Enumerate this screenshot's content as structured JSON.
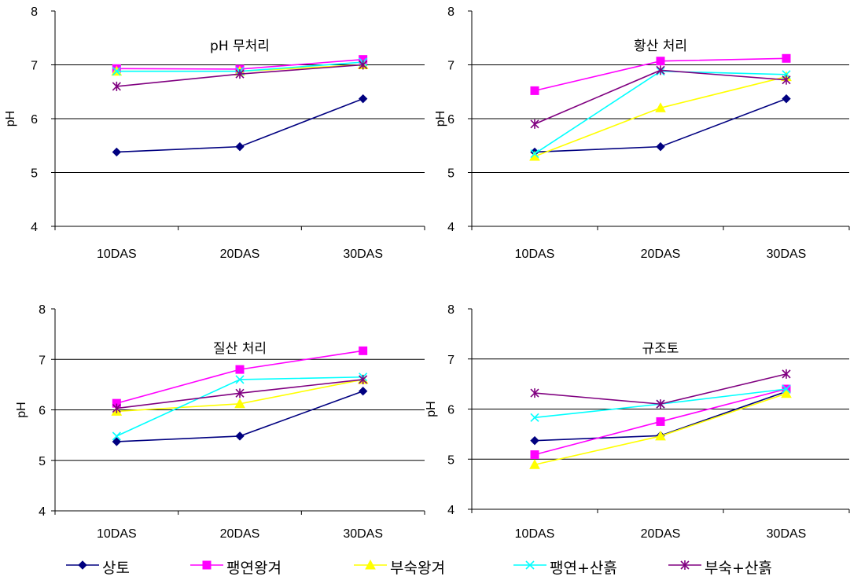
{
  "chart_data": [
    {
      "type": "line",
      "title": "pH 무처리",
      "ylabel": "pH",
      "categories": [
        "10DAS",
        "20DAS",
        "30DAS"
      ],
      "yticks": [
        "4",
        "5",
        "6",
        "7",
        "8"
      ],
      "ylim": [
        4,
        8
      ],
      "grid": true,
      "series": [
        {
          "name": "상토",
          "values": [
            5.38,
            5.48,
            6.37
          ]
        },
        {
          "name": "팽연왕겨",
          "values": [
            6.93,
            6.92,
            7.1
          ]
        },
        {
          "name": "부숙왕겨",
          "values": [
            6.88,
            6.88,
            7.0
          ]
        },
        {
          "name": "팽연+산흙",
          "values": [
            6.88,
            6.88,
            7.05
          ]
        },
        {
          "name": "부숙+산흙",
          "values": [
            6.6,
            6.83,
            7.0
          ]
        }
      ]
    },
    {
      "type": "line",
      "title": "황산 처리",
      "ylabel": "pH",
      "categories": [
        "10DAS",
        "20DAS",
        "30DAS"
      ],
      "yticks": [
        "4",
        "5",
        "6",
        "7",
        "8"
      ],
      "ylim": [
        4,
        8
      ],
      "grid": true,
      "series": [
        {
          "name": "상토",
          "values": [
            5.38,
            5.48,
            6.37
          ]
        },
        {
          "name": "팽연왕겨",
          "values": [
            6.52,
            7.07,
            7.12
          ]
        },
        {
          "name": "부숙왕겨",
          "values": [
            5.3,
            6.2,
            6.78
          ]
        },
        {
          "name": "팽연+산흙",
          "values": [
            5.35,
            6.88,
            6.82
          ]
        },
        {
          "name": "부숙+산흙",
          "values": [
            5.9,
            6.9,
            6.72
          ]
        }
      ]
    },
    {
      "type": "line",
      "title": "질산 처리",
      "ylabel": "pH",
      "categories": [
        "10DAS",
        "20DAS",
        "30DAS"
      ],
      "yticks": [
        "4",
        "5",
        "6",
        "7",
        "8"
      ],
      "ylim": [
        4,
        8
      ],
      "grid": true,
      "series": [
        {
          "name": "상토",
          "values": [
            5.37,
            5.48,
            6.37
          ]
        },
        {
          "name": "팽연왕겨",
          "values": [
            6.13,
            6.8,
            7.17
          ]
        },
        {
          "name": "부숙왕겨",
          "values": [
            5.97,
            6.12,
            6.6
          ]
        },
        {
          "name": "팽연+산흙",
          "values": [
            5.48,
            6.6,
            6.65
          ]
        },
        {
          "name": "부숙+산흙",
          "values": [
            6.03,
            6.33,
            6.6
          ]
        }
      ]
    },
    {
      "type": "line",
      "title": "규조토",
      "ylabel": "pH",
      "categories": [
        "10DAS",
        "20DAS",
        "30DAS"
      ],
      "yticks": [
        "4",
        "5",
        "6",
        "7",
        "8"
      ],
      "ylim": [
        4,
        8
      ],
      "grid": true,
      "series": [
        {
          "name": "상토",
          "values": [
            5.37,
            5.47,
            6.35
          ]
        },
        {
          "name": "팽연왕겨",
          "values": [
            5.09,
            5.75,
            6.4
          ]
        },
        {
          "name": "부숙왕겨",
          "values": [
            4.89,
            5.46,
            6.31
          ]
        },
        {
          "name": "팽연+산흙",
          "values": [
            5.83,
            6.1,
            6.4
          ]
        },
        {
          "name": "부숙+산흙",
          "values": [
            6.32,
            6.1,
            6.7
          ]
        }
      ]
    }
  ],
  "legend": {
    "placement": "bottom",
    "items": [
      {
        "label": "상토",
        "color": "#000080",
        "marker": "diamond"
      },
      {
        "label": "팽연왕겨",
        "color": "#ff00ff",
        "marker": "square"
      },
      {
        "label": "부숙왕겨",
        "color": "#ffff00",
        "marker": "triangle"
      },
      {
        "label": "팽연+산흙",
        "color": "#00ffff",
        "marker": "x"
      },
      {
        "label": "부숙+산흙",
        "color": "#800080",
        "marker": "star"
      }
    ]
  }
}
